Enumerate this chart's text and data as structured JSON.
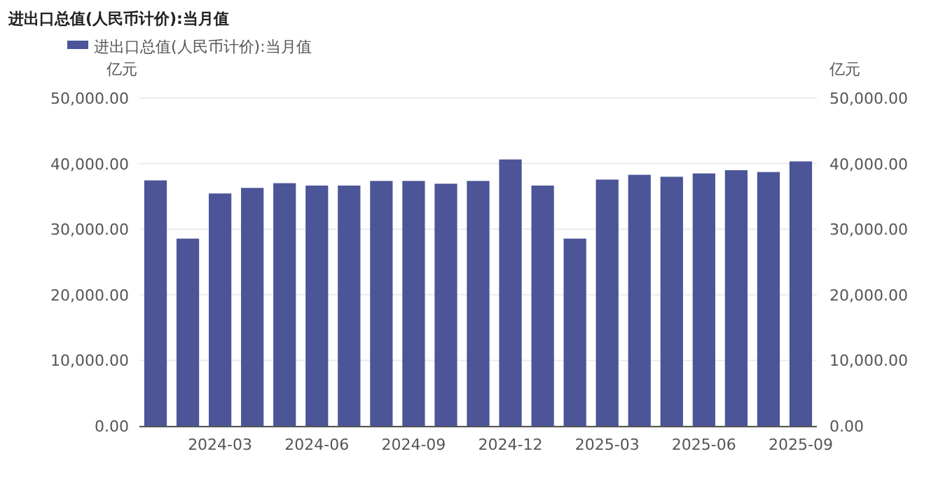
{
  "chart_data": {
    "type": "bar",
    "title": "进出口总值(人民币计价):当月值",
    "ylabel": "亿元",
    "y2label": "亿元",
    "categories": [
      null,
      null,
      "2024-03",
      null,
      null,
      "2024-06",
      null,
      null,
      "2024-09",
      null,
      null,
      "2024-12",
      null,
      null,
      "2025-03",
      null,
      null,
      "2025-06",
      null,
      null,
      "2025-09"
    ],
    "series": [
      {
        "name": "进出口总值(人民币计价):当月值",
        "color": "#4b5597",
        "values": [
          37450,
          28570,
          35450,
          36300,
          37020,
          36660,
          36660,
          37360,
          37360,
          36940,
          37360,
          40640,
          36660,
          28570,
          37570,
          38300,
          38000,
          38510,
          39000,
          38720,
          40340
        ]
      }
    ],
    "ylim": [
      0,
      50000
    ],
    "yticks": [
      {
        "value": 0,
        "label": "0.00"
      },
      {
        "value": 10000,
        "label": "10,000.00"
      },
      {
        "value": 20000,
        "label": "20,000.00"
      },
      {
        "value": 30000,
        "label": "30,000.00"
      },
      {
        "value": 40000,
        "label": "40,000.00"
      },
      {
        "value": 50000,
        "label": "50,000.00"
      }
    ],
    "y2lim": [
      0,
      50000
    ],
    "y2ticks": [
      {
        "value": 0,
        "label": "0.00"
      },
      {
        "value": 10000,
        "label": "10,000.00"
      },
      {
        "value": 20000,
        "label": "20,000.00"
      },
      {
        "value": 30000,
        "label": "30,000.00"
      },
      {
        "value": 40000,
        "label": "40,000.00"
      },
      {
        "value": 50000,
        "label": "50,000.00"
      }
    ],
    "grid": "y",
    "legend": "top"
  }
}
